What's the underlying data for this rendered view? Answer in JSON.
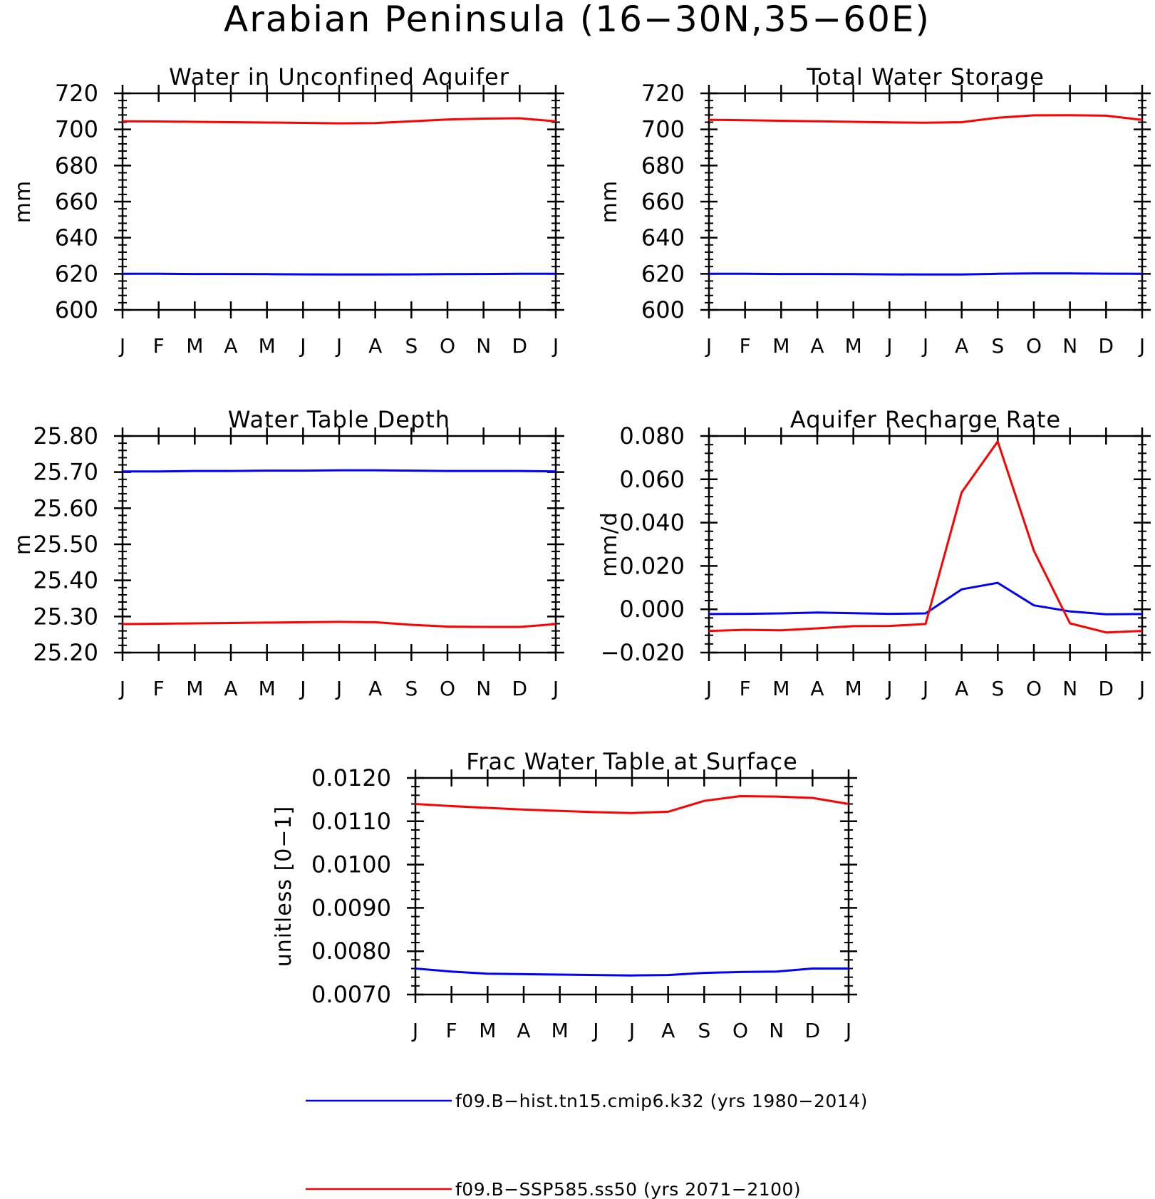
{
  "figure_title": "Arabian Peninsula (16−30N,35−60E)",
  "colors": {
    "historical": "#0000ff",
    "ssp585": "#ff0000",
    "axis": "#000000"
  },
  "legend": [
    {
      "label": "f09.B−hist.tn15.cmip6.k32 (yrs 1980−2014)",
      "color": "#0000ff"
    },
    {
      "label": "f09.B−SSP585.ss50 (yrs 2071−2100)",
      "color": "#ff0000"
    }
  ],
  "chart_data": [
    {
      "type": "line",
      "title": "Water in Unconfined Aquifer",
      "xlabel": "",
      "ylabel": "mm",
      "categories": [
        "J",
        "F",
        "M",
        "A",
        "M",
        "J",
        "J",
        "A",
        "S",
        "O",
        "N",
        "D",
        "J"
      ],
      "ylim": [
        600,
        720
      ],
      "yticks": [
        "720",
        "700",
        "680",
        "660",
        "640",
        "620",
        "600"
      ],
      "grid": false,
      "series": [
        {
          "name": "f09.B−hist.tn15.cmip6.k32 (yrs 1980−2014)",
          "color": "#0000ff",
          "values": [
            620.0,
            620.0,
            619.9,
            619.9,
            619.8,
            619.7,
            619.6,
            619.6,
            619.7,
            619.8,
            619.9,
            620.0,
            620.0
          ]
        },
        {
          "name": "f09.B−SSP585.ss50 (yrs 2071−2100)",
          "color": "#ff0000",
          "values": [
            704.5,
            704.4,
            704.2,
            704.0,
            703.8,
            703.6,
            703.4,
            703.5,
            704.5,
            705.5,
            706.0,
            706.2,
            704.5
          ]
        }
      ]
    },
    {
      "type": "line",
      "title": "Total Water Storage",
      "xlabel": "",
      "ylabel": "mm",
      "categories": [
        "J",
        "F",
        "M",
        "A",
        "M",
        "J",
        "J",
        "A",
        "S",
        "O",
        "N",
        "D",
        "J"
      ],
      "ylim": [
        600,
        720
      ],
      "yticks": [
        "720",
        "700",
        "680",
        "660",
        "640",
        "620",
        "600"
      ],
      "grid": false,
      "series": [
        {
          "name": "f09.B−hist.tn15.cmip6.k32 (yrs 1980−2014)",
          "color": "#0000ff",
          "values": [
            620.0,
            620.0,
            619.9,
            619.9,
            619.8,
            619.7,
            619.6,
            619.6,
            620.0,
            620.2,
            620.2,
            620.1,
            620.0
          ]
        },
        {
          "name": "f09.B−SSP585.ss50 (yrs 2071−2100)",
          "color": "#ff0000",
          "values": [
            705.3,
            705.1,
            704.8,
            704.5,
            704.2,
            703.9,
            703.7,
            704.0,
            706.5,
            707.8,
            707.9,
            707.6,
            705.3
          ]
        }
      ]
    },
    {
      "type": "line",
      "title": "Water Table Depth",
      "xlabel": "",
      "ylabel": "m",
      "categories": [
        "J",
        "F",
        "M",
        "A",
        "M",
        "J",
        "J",
        "A",
        "S",
        "O",
        "N",
        "D",
        "J"
      ],
      "ylim": [
        25.2,
        25.8
      ],
      "yticks": [
        "25.80",
        "25.70",
        "25.60",
        "25.50",
        "25.40",
        "25.30",
        "25.20"
      ],
      "grid": false,
      "series": [
        {
          "name": "f09.B−hist.tn15.cmip6.k32 (yrs 1980−2014)",
          "color": "#0000ff",
          "values": [
            25.702,
            25.702,
            25.703,
            25.703,
            25.704,
            25.704,
            25.705,
            25.705,
            25.704,
            25.703,
            25.703,
            25.703,
            25.702
          ]
        },
        {
          "name": "f09.B−SSP585.ss50 (yrs 2071−2100)",
          "color": "#ff0000",
          "values": [
            25.279,
            25.28,
            25.281,
            25.282,
            25.283,
            25.284,
            25.285,
            25.284,
            25.277,
            25.272,
            25.271,
            25.271,
            25.279
          ]
        }
      ]
    },
    {
      "type": "line",
      "title": "Aquifer Recharge Rate",
      "xlabel": "",
      "ylabel": "mm/d",
      "categories": [
        "J",
        "F",
        "M",
        "A",
        "M",
        "J",
        "J",
        "A",
        "S",
        "O",
        "N",
        "D",
        "J"
      ],
      "ylim": [
        -0.02,
        0.08
      ],
      "yticks": [
        "0.080",
        "0.060",
        "0.040",
        "0.020",
        "0.000",
        "−0.020"
      ],
      "grid": false,
      "series": [
        {
          "name": "f09.B−hist.tn15.cmip6.k32 (yrs 1980−2014)",
          "color": "#0000ff",
          "values": [
            -0.0022,
            -0.0021,
            -0.0019,
            -0.0015,
            -0.0018,
            -0.0021,
            -0.0019,
            0.0092,
            0.0122,
            0.0018,
            -0.001,
            -0.0023,
            -0.0022
          ]
        },
        {
          "name": "f09.B−SSP585.ss50 (yrs 2071−2100)",
          "color": "#ff0000",
          "values": [
            -0.01,
            -0.0095,
            -0.0097,
            -0.0088,
            -0.0078,
            -0.0077,
            -0.0068,
            0.054,
            0.0775,
            0.027,
            -0.0065,
            -0.0107,
            -0.01
          ]
        }
      ]
    },
    {
      "type": "line",
      "title": "Frac Water Table at Surface",
      "xlabel": "",
      "ylabel": "unitless [0−1]",
      "categories": [
        "J",
        "F",
        "M",
        "A",
        "M",
        "J",
        "J",
        "A",
        "S",
        "O",
        "N",
        "D",
        "J"
      ],
      "ylim": [
        0.007,
        0.012
      ],
      "yticks": [
        "0.0120",
        "0.0110",
        "0.0100",
        "0.0090",
        "0.0080",
        "0.0070"
      ],
      "grid": false,
      "series": [
        {
          "name": "f09.B−hist.tn15.cmip6.k32 (yrs 1980−2014)",
          "color": "#0000ff",
          "values": [
            0.0076,
            0.00753,
            0.00748,
            0.00747,
            0.00746,
            0.00745,
            0.00744,
            0.00745,
            0.0075,
            0.00752,
            0.00753,
            0.0076,
            0.0076
          ]
        },
        {
          "name": "f09.B−SSP585.ss50 (yrs 2071−2100)",
          "color": "#ff0000",
          "values": [
            0.0114,
            0.01135,
            0.01131,
            0.01127,
            0.01124,
            0.01121,
            0.01119,
            0.01122,
            0.01147,
            0.01158,
            0.01157,
            0.01154,
            0.0114
          ]
        }
      ]
    }
  ]
}
